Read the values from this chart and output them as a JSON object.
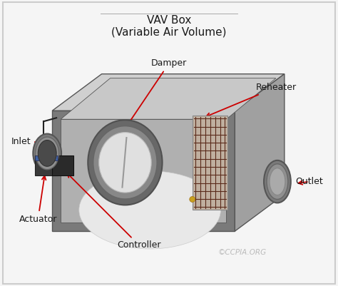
{
  "title_line1": "VAV Box",
  "title_line2": "(Variable Air Volume)",
  "bg_color": "#f5f5f5",
  "border_color": "#cccccc",
  "arrow_color": "#cc0000",
  "label_color": "#1a1a1a",
  "watermark": "©CCPIA.ORG",
  "watermark_color": "#bbbbbb",
  "figsize": [
    4.74,
    4.01
  ],
  "dpi": 100,
  "box": {
    "front_color": "#7a7a7a",
    "top_color": "#d0d0d0",
    "right_color": "#a0a0a0",
    "left_color": "#686868",
    "inner_top_color": "#c8c8c8",
    "inner_front_color": "#b0b0b0",
    "edge_color": "#555555"
  }
}
